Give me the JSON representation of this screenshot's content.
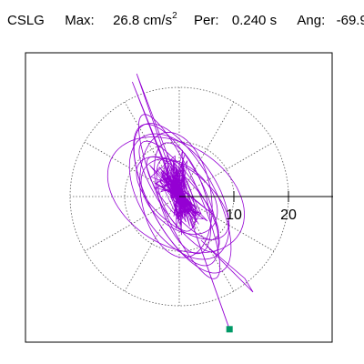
{
  "header": {
    "station": "CSLG",
    "max_label": "Max:",
    "max_value": "26.8 cm/s",
    "max_exp": "2",
    "per_label": "Per:",
    "per_value": "0.240 s",
    "ang_label": "Ang:",
    "ang_value": "-69.9"
  },
  "chart_data": {
    "type": "polar-particle-motion",
    "title": "CSLG  Max: 26.8 cm/s2  Per: 0.240 s  Ang: -69.9",
    "max_amplitude": 26.8,
    "max_units": "cm/s2",
    "period_s": 0.24,
    "direction_deg": -69.9,
    "radial_ticks": [
      10,
      20
    ],
    "tick_labels": [
      "10",
      "20"
    ],
    "rings": [
      10,
      20
    ],
    "spokes_deg": [
      0,
      30,
      60,
      90,
      120,
      150,
      180,
      210,
      240,
      270,
      300,
      330
    ],
    "grid": "dotted",
    "trace_color": "#9400d3",
    "end_marker_color": "#009966",
    "end_point": {
      "x": 9.2,
      "y": -24.3
    },
    "start_point": {
      "x": -8.6,
      "y": 21.0
    },
    "peak_point": {
      "x": 9.2,
      "y": -24.3
    },
    "ellipse_sketch": [
      {
        "a": 14.2,
        "b": 5.2,
        "rot": -64
      },
      {
        "a": 12.8,
        "b": 7.2,
        "rot": -58
      },
      {
        "a": 10.6,
        "b": 4.2,
        "rot": -72
      },
      {
        "a": 13.6,
        "b": 9.2,
        "rot": -32
      },
      {
        "a": 16.4,
        "b": 3.6,
        "rot": -66
      },
      {
        "a": 9.6,
        "b": 3.0,
        "rot": -50
      },
      {
        "a": 11.6,
        "b": 6.4,
        "rot": -80
      },
      {
        "a": 8.2,
        "b": 5.4,
        "rot": -44
      },
      {
        "a": 15.2,
        "b": 6.0,
        "rot": -62
      },
      {
        "a": 7.0,
        "b": 2.8,
        "rot": -70
      },
      {
        "a": 12.0,
        "b": 3.6,
        "rot": -56
      },
      {
        "a": 10.2,
        "b": 5.0,
        "rot": -40
      }
    ]
  }
}
